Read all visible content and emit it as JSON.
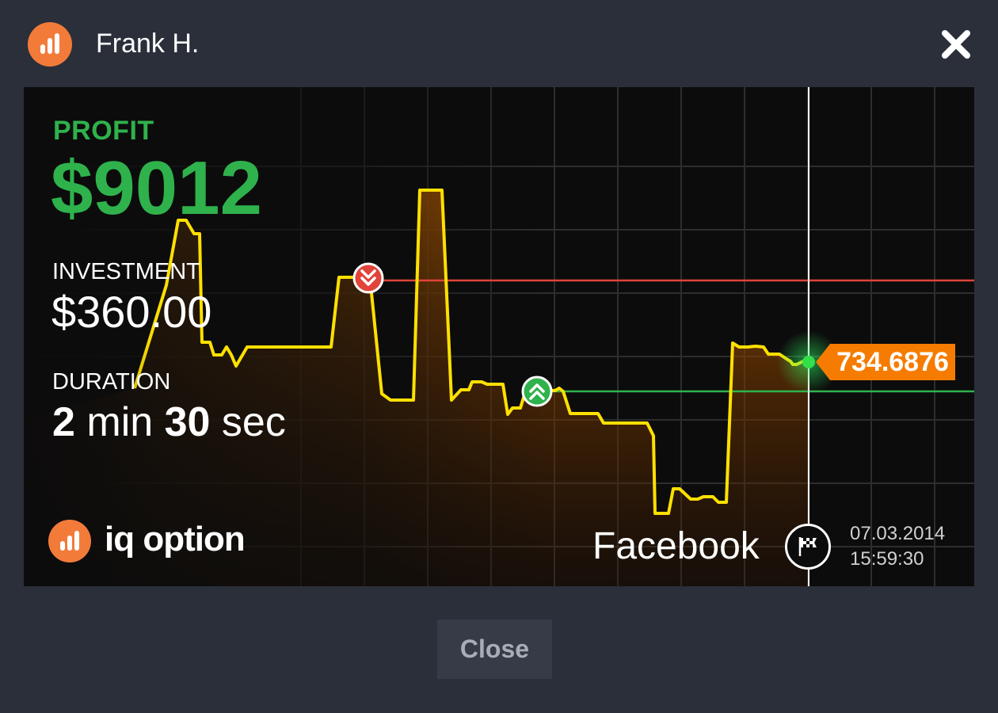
{
  "header": {
    "user_name": "Frank H.",
    "avatar_icon": "iq-option-bars-icon",
    "close_icon": "close-x-icon"
  },
  "card": {
    "profit_label": "PROFIT",
    "profit_value": "$9012",
    "investment_label": "INVESTMENT",
    "investment_value": "$360.00",
    "duration_label": "DURATION",
    "duration": {
      "minutes": "2",
      "min_unit": "min",
      "seconds": "30",
      "sec_unit": "sec"
    },
    "brand_name": "iq option",
    "asset_name": "Facebook",
    "expiry_date": "07.03.2014",
    "expiry_time": "15:59:30",
    "current_price": "734.6876",
    "colors": {
      "profit": "#2fb24c",
      "line": "#ffe000",
      "put_level": "#e0443a",
      "call_level": "#2fb24c",
      "price_tag": "#f57c00",
      "brand": "#f27b3a"
    },
    "markers": [
      {
        "type": "put",
        "icon": "double-chevron-down-icon"
      },
      {
        "type": "call",
        "icon": "double-chevron-up-icon"
      }
    ]
  },
  "footer": {
    "close_label": "Close"
  }
}
